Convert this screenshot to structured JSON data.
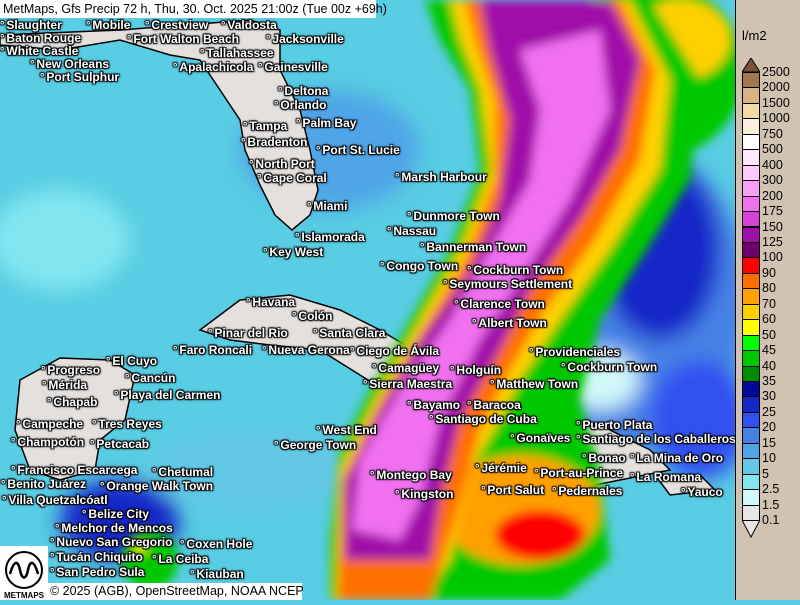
{
  "title": "MetMaps, Gfs Precip 72 h, Thu, 30. Oct. 2025 21:00z (Tue 00z +69h)",
  "legend": {
    "unit": "l/m2",
    "labels": [
      "2500",
      "2000",
      "1500",
      "1000",
      "750",
      "500",
      "400",
      "300",
      "200",
      "175",
      "150",
      "125",
      "100",
      "90",
      "80",
      "70",
      "60",
      "50",
      "45",
      "40",
      "35",
      "30",
      "25",
      "20",
      "15",
      "10",
      "5",
      "2.5",
      "1.5",
      "0.1"
    ],
    "top_arrow_color": "#7a5535",
    "colors": [
      "#a07850",
      "#d9b382",
      "#f0dca4",
      "#faf0da",
      "#ffffff",
      "#ffe6ff",
      "#ffc8ff",
      "#f8a0f8",
      "#f070f0",
      "#d840d8",
      "#a010a8",
      "#700070",
      "#ff0000",
      "#ff7000",
      "#ffa000",
      "#ffd000",
      "#ffff00",
      "#00ff00",
      "#00c800",
      "#008c00",
      "#000a96",
      "#1428c8",
      "#3250f0",
      "#4682e6",
      "#50a5e6",
      "#64c8e6",
      "#82e6f0",
      "#d2f8fa",
      "#e6e6e6"
    ],
    "bottom_arrow_color": "#e6e6e6"
  },
  "cities": [
    "Tallahassee",
    "Slaughter",
    "Baton Rouge",
    "White Castle",
    "New Orleans",
    "Port Sulphur",
    "Mobile",
    "Crestview",
    "Valdosta",
    "Fort Walton Beach",
    "Jacksonville",
    "Apalachicola",
    "Gainesville",
    "Deltona",
    "Orlando",
    "Palm Bay",
    "Tampa",
    "Bradenton",
    "Port St. Lucie",
    "North Port",
    "Cape Coral",
    "Marsh Harbour",
    "Miami",
    "Dunmore Town",
    "Nassau",
    "Islamorada",
    "Key West",
    "Bannerman Town",
    "Congo Town",
    "Cockburn Town",
    "Seymours Settlement",
    "Havana",
    "Clarence Town",
    "Colón",
    "Albert Town",
    "Pinar del Rio",
    "Santa Clara",
    "Nueva Gerona",
    "Faro Roncali",
    "Ciego de Ávila",
    "Camagüey",
    "Holguín",
    "Sierra Maestra",
    "Bayamo",
    "Baracoa",
    "Santiago de Cuba",
    "West End",
    "George Town",
    "Matthew Town",
    "Gonaïves",
    "Providenciales",
    "Cockburn Town",
    "Puerto Plata",
    "Santiago de los Caballeros",
    "Bonao",
    "La Mina de Oro",
    "Montego Bay",
    "Jérémie",
    "Port-au-Prince",
    "La Romana",
    "Yauco",
    "Kingston",
    "Port Salut",
    "Pedernales",
    "El Cuyo",
    "Progreso",
    "Mérida",
    "Cancún",
    "Chapab",
    "Playa del Carmen",
    "Campeche",
    "Tres Reyes",
    "Champotón",
    "Petcacab",
    "Chetumal",
    "Francisco Escarcega",
    "Benito Juárez",
    "Orange Walk Town",
    "Villa Quetzalcóatl",
    "Belize City",
    "Melchor de Mencos",
    "Nuevo San Gregorio",
    "Coxen Hole",
    "La Ceiba",
    "Tucán Chiquito",
    "Kiauban",
    "San Pedro Sula"
  ],
  "footer": "© 2025 (AGB), OpenStreetMap, NOAA NCEP",
  "logo_text": "METMAPS"
}
